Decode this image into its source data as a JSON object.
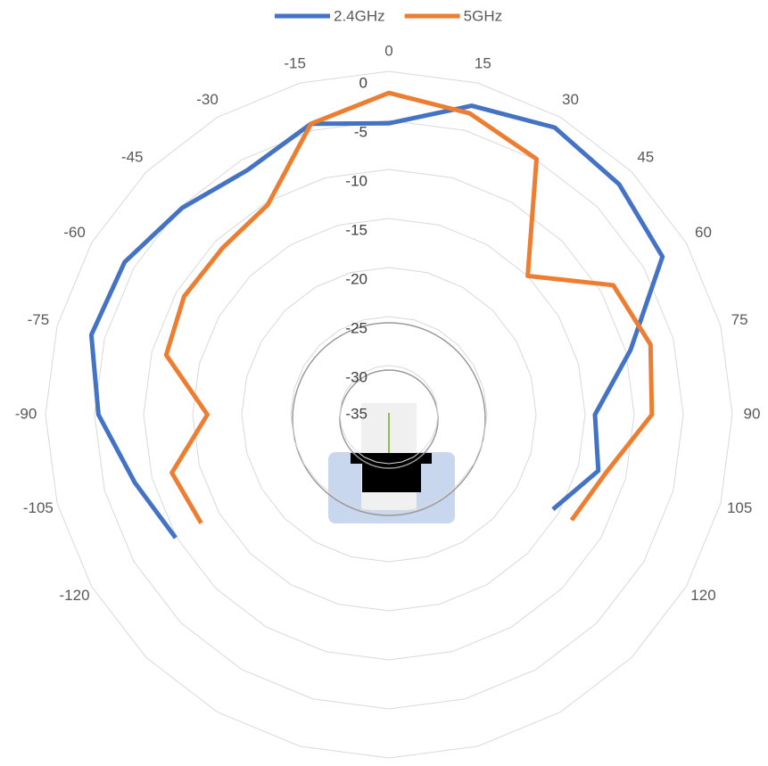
{
  "chart_data": {
    "type": "radar",
    "categories": [
      "0",
      "15",
      "30",
      "45",
      "60",
      "75",
      "90",
      "105",
      "120",
      null,
      null,
      null,
      null,
      null,
      null,
      null,
      "-120",
      "-105",
      "-90",
      "-75",
      "-60",
      "-45",
      "-30",
      "-15"
    ],
    "series": [
      {
        "name": "2.4GHz",
        "color": "#4472c4",
        "values": [
          -5.3,
          -2.4,
          -1.2,
          -1.8,
          -2.8,
          -9.5,
          -14,
          -12.9,
          -15.7,
          null,
          null,
          null,
          null,
          null,
          null,
          null,
          -9.9,
          -8.2,
          -5.4,
          -3.6,
          -3.9,
          -5.2,
          -6.2,
          -4.3
        ]
      },
      {
        "name": "5GHz",
        "color": "#ed7d31",
        "values": [
          -2.2,
          -3.2,
          -4.9,
          -15,
          -8.6,
          -7.4,
          -8.2,
          -12.1,
          -13.5,
          null,
          null,
          null,
          null,
          null,
          null,
          null,
          -12.9,
          -12.1,
          -16.5,
          -11.5,
          -10.9,
          -11,
          -10.3,
          -4.3
        ]
      }
    ],
    "ylim": [
      -35,
      0
    ],
    "yticks": [
      -35,
      -30,
      -25,
      -20,
      -15,
      -10,
      -5,
      0
    ],
    "grid": true,
    "legend": "top"
  }
}
